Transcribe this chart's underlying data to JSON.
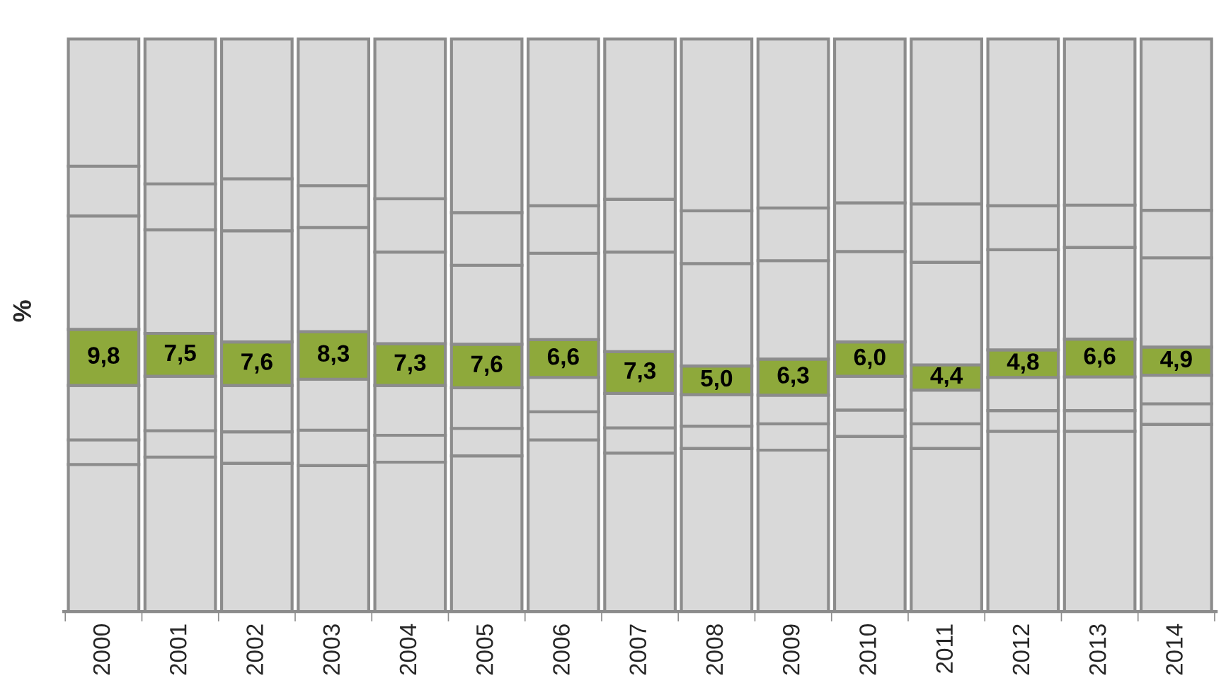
{
  "chart_data": {
    "type": "bar",
    "stacked": true,
    "ylabel": "%",
    "categories": [
      "2000",
      "2001",
      "2002",
      "2003",
      "2004",
      "2005",
      "2006",
      "2007",
      "2008",
      "2009",
      "2010",
      "2011",
      "2012",
      "2013",
      "2014"
    ],
    "series": [
      {
        "color": "#d9d9d9",
        "values": [
          25.7,
          27.0,
          25.9,
          25.5,
          26.1,
          27.2,
          30.0,
          27.7,
          28.5,
          28.2,
          30.6,
          28.5,
          31.5,
          31.5,
          32.7
        ]
      },
      {
        "color": "#d9d9d9",
        "values": [
          4.3,
          4.6,
          5.5,
          6.2,
          4.7,
          4.8,
          4.9,
          4.4,
          3.9,
          4.6,
          4.6,
          4.3,
          3.6,
          3.6,
          3.6
        ]
      },
      {
        "color": "#d9d9d9",
        "values": [
          9.5,
          9.5,
          8.1,
          8.9,
          8.7,
          7.1,
          6.0,
          6.0,
          5.5,
          5.0,
          5.9,
          5.9,
          5.8,
          5.9,
          5.0
        ]
      },
      {
        "color": "#8ea93b",
        "values": [
          9.8,
          7.5,
          7.6,
          8.3,
          7.3,
          7.6,
          6.6,
          7.3,
          5.0,
          6.3,
          6.0,
          4.4,
          4.8,
          6.6,
          4.9
        ],
        "value_labels": [
          "9,8",
          "7,5",
          "7,6",
          "8,3",
          "7,3",
          "7,6",
          "6,6",
          "7,3",
          "5,0",
          "6,3",
          "6,0",
          "4,4",
          "4,8",
          "6,6",
          "4,9"
        ]
      },
      {
        "color": "#d9d9d9",
        "values": [
          19.8,
          18.1,
          19.4,
          18.2,
          16.0,
          13.8,
          15.1,
          17.4,
          17.9,
          17.2,
          15.8,
          17.9,
          17.5,
          16.0,
          15.6
        ]
      },
      {
        "color": "#d9d9d9",
        "values": [
          8.7,
          8.0,
          9.1,
          7.3,
          9.3,
          9.2,
          8.3,
          9.2,
          9.2,
          9.2,
          8.5,
          10.2,
          7.7,
          7.4,
          8.3
        ]
      },
      {
        "color": "#d9d9d9",
        "values": [
          22.2,
          25.3,
          24.4,
          25.6,
          27.9,
          30.3,
          29.1,
          28.0,
          30.0,
          29.5,
          28.6,
          28.8,
          29.1,
          29.0,
          29.9
        ]
      }
    ],
    "legend": false,
    "grid": false
  }
}
